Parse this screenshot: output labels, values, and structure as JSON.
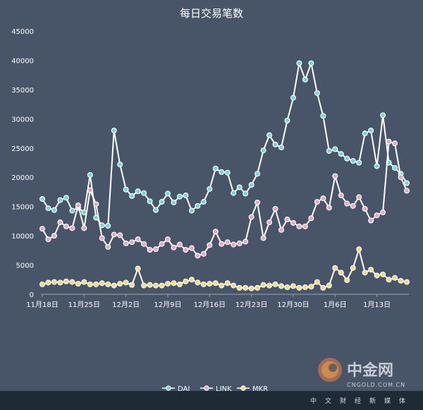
{
  "chart_data": {
    "type": "line",
    "title": "每日交易笔数",
    "xlabel": "",
    "ylabel": "",
    "ylim": [
      0,
      45000
    ],
    "yticks": [
      0,
      5000,
      10000,
      15000,
      20000,
      25000,
      30000,
      35000,
      40000,
      45000
    ],
    "x_start_date": "2018-11-18",
    "x_tick_labels": [
      "11月18日",
      "11月25日",
      "12月2日",
      "12月9日",
      "12月16日",
      "12月23日",
      "12月30日",
      "1月6日",
      "1月13日"
    ],
    "x_tick_index": [
      0,
      7,
      14,
      21,
      28,
      35,
      42,
      49,
      56
    ],
    "grid": false,
    "legend_position": "bottom",
    "colors": {
      "DAI": "#6fd6dc",
      "LINK": "#e6a8c0",
      "MKR": "#f2d97a",
      "line": "#ffffff",
      "background": "#485569"
    },
    "series": [
      {
        "name": "DAI",
        "values": [
          16300,
          14700,
          14400,
          16100,
          16500,
          14300,
          14800,
          14000,
          20400,
          13100,
          11800,
          11700,
          28000,
          22200,
          17900,
          16800,
          17600,
          17300,
          15900,
          14400,
          15800,
          17200,
          15700,
          16700,
          16900,
          14300,
          15100,
          15800,
          18000,
          21500,
          20900,
          20800,
          17300,
          18300,
          17200,
          18700,
          20600,
          24600,
          27200,
          25600,
          25100,
          29700,
          33600,
          39500,
          36700,
          39500,
          34400,
          30500,
          24500,
          24800,
          24000,
          23200,
          22800,
          22500,
          27500,
          28000,
          21900,
          30600,
          22500,
          21600,
          20600,
          19000
        ]
      },
      {
        "name": "LINK",
        "values": [
          11200,
          9400,
          10000,
          12300,
          11600,
          11300,
          15200,
          11300,
          17800,
          15400,
          9600,
          8100,
          10200,
          10100,
          8700,
          8900,
          9400,
          8600,
          7600,
          7700,
          8600,
          9400,
          8000,
          8500,
          7600,
          7900,
          6600,
          6900,
          8400,
          10700,
          8600,
          8900,
          8500,
          8700,
          9000,
          13200,
          15700,
          9600,
          12300,
          14600,
          11000,
          12800,
          12200,
          11600,
          11600,
          13000,
          15800,
          16400,
          14800,
          20200,
          16900,
          15500,
          15100,
          16600,
          14600,
          12600,
          13500,
          14000,
          26100,
          25800,
          20000,
          17700
        ]
      },
      {
        "name": "MKR",
        "values": [
          1700,
          2000,
          2100,
          2000,
          2200,
          2100,
          1800,
          2100,
          1700,
          1700,
          1900,
          1700,
          1500,
          1800,
          2000,
          1600,
          4400,
          1500,
          1600,
          1500,
          1500,
          1800,
          1900,
          1700,
          2200,
          2500,
          2000,
          1700,
          1800,
          1900,
          1500,
          1900,
          1500,
          1100,
          1100,
          1000,
          1100,
          1600,
          1500,
          1700,
          1400,
          1200,
          1400,
          1100,
          1200,
          1300,
          2100,
          1100,
          1500,
          4500,
          3700,
          2400,
          4500,
          7700,
          3700,
          4200,
          3200,
          3400,
          2500,
          2800,
          2300,
          2100
        ]
      }
    ]
  },
  "watermark": {
    "brand_cn": "中金网",
    "brand_en": "CNGOLD.COM.CN",
    "footer": "中文财经新媒体"
  }
}
